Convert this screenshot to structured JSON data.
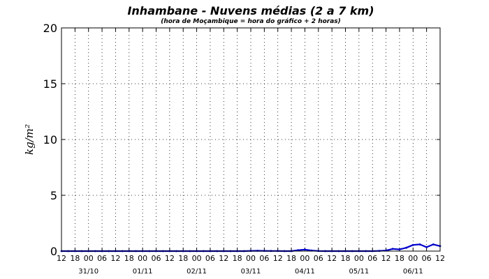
{
  "chart_data": {
    "type": "line",
    "title": "Inhambane - Nuvens médias (2 a 7 km)",
    "subtitle": "(hora de Moçambique = hora do gráfico + 2 horas)",
    "ylabel": "kg/m²",
    "xlabel": "",
    "ylim": [
      0,
      20
    ],
    "yticks": [
      0,
      5,
      10,
      15,
      20
    ],
    "grid": true,
    "x_hour_start": 12,
    "x_hour_step": 6,
    "x_tick_labels": [
      "12",
      "18",
      "00",
      "06",
      "12",
      "18",
      "00",
      "06",
      "12",
      "18",
      "00",
      "06",
      "12",
      "18",
      "00",
      "06",
      "12",
      "18",
      "00",
      "06",
      "12",
      "18",
      "00",
      "06",
      "12",
      "18",
      "00",
      "06",
      "12"
    ],
    "date_labels": [
      {
        "label": "31/10",
        "tick_index": 2
      },
      {
        "label": "01/11",
        "tick_index": 6
      },
      {
        "label": "02/11",
        "tick_index": 10
      },
      {
        "label": "03/11",
        "tick_index": 14
      },
      {
        "label": "04/11",
        "tick_index": 18
      },
      {
        "label": "05/11",
        "tick_index": 22
      },
      {
        "label": "06/11",
        "tick_index": 26
      }
    ],
    "series": [
      {
        "color": "#0000cc",
        "x_hours": [
          0,
          3,
          6,
          9,
          12,
          15,
          18,
          21,
          24,
          27,
          30,
          33,
          36,
          39,
          42,
          45,
          48,
          51,
          54,
          57,
          60,
          63,
          66,
          69,
          72,
          75,
          78,
          81,
          84,
          87,
          90,
          93,
          96,
          99,
          102,
          105,
          108,
          111,
          114,
          117,
          120,
          123,
          126,
          129,
          132,
          135,
          138,
          141,
          144,
          147,
          150,
          153,
          156,
          159,
          162,
          165,
          168
        ],
        "values": [
          0,
          0,
          0,
          0,
          0,
          0,
          0,
          0,
          0,
          0,
          0,
          0,
          0,
          0,
          0,
          0,
          0,
          0,
          0,
          0,
          0,
          0,
          0,
          0,
          0,
          0,
          0,
          0,
          0.02,
          0.03,
          0.02,
          0.01,
          0.01,
          0,
          0,
          0.08,
          0.14,
          0.05,
          0.01,
          0,
          0,
          0,
          0,
          0,
          0,
          0,
          0,
          0.02,
          0.05,
          0.2,
          0.15,
          0.3,
          0.55,
          0.6,
          0.35,
          0.6,
          0.45
        ]
      }
    ]
  }
}
